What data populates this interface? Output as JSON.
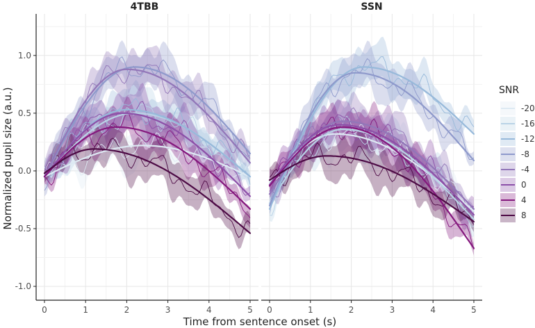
{
  "chart_data": {
    "type": "line",
    "xlabel": "Time from sentence onset (s)",
    "ylabel": "Normalized pupil size (a.u.)",
    "xlim": [
      0,
      5
    ],
    "ylim": [
      -1.12,
      1.36
    ],
    "xticks": [
      "0",
      "1",
      "2",
      "3",
      "4",
      "5"
    ],
    "yticks": [
      "1.0",
      "0.5",
      "0.0",
      "-0.5",
      "-1.0"
    ],
    "grid": true,
    "legend": {
      "title": "SNR",
      "position": "right",
      "entries": [
        "-20",
        "-16",
        "-12",
        "-8",
        "-4",
        "0",
        "4",
        "8"
      ]
    },
    "colors": {
      "-20": "#dde9f3",
      "-16": "#b9d3e6",
      "-12": "#97b9da",
      "-8": "#8e99cb",
      "-4": "#9276b8",
      "0": "#8c4fa8",
      "4": "#84177d",
      "8": "#4d0a45"
    },
    "panels": [
      {
        "title": "4TBB",
        "series": [
          {
            "name": "-20",
            "peak": 0.22,
            "peak_t": 2.4,
            "end": -0.05,
            "start": -0.05
          },
          {
            "name": "-16",
            "peak": 0.5,
            "peak_t": 2.2,
            "end": -0.05,
            "start": -0.05
          },
          {
            "name": "-12",
            "peak": 0.53,
            "peak_t": 2.0,
            "end": -0.05,
            "start": -0.05
          },
          {
            "name": "-8",
            "peak": 0.9,
            "peak_t": 2.2,
            "end": 0.15,
            "start": -0.05
          },
          {
            "name": "-4",
            "peak": 0.88,
            "peak_t": 2.0,
            "end": 0.07,
            "start": -0.05
          },
          {
            "name": "0",
            "peak": 0.5,
            "peak_t": 1.9,
            "end": -0.22,
            "start": -0.05
          },
          {
            "name": "4",
            "peak": 0.38,
            "peak_t": 1.75,
            "end": -0.33,
            "start": -0.05
          },
          {
            "name": "8",
            "peak": 0.19,
            "peak_t": 1.2,
            "end": -0.54,
            "start": -0.02
          }
        ]
      },
      {
        "title": "SSN",
        "series": [
          {
            "name": "-20",
            "peak": 0.32,
            "peak_t": 1.6,
            "end": -0.35,
            "start": -0.1
          },
          {
            "name": "-16",
            "peak": 0.36,
            "peak_t": 1.8,
            "end": -0.42,
            "start": -0.28
          },
          {
            "name": "-12",
            "peak": 0.9,
            "peak_t": 2.3,
            "end": 0.32,
            "start": -0.33
          },
          {
            "name": "-8",
            "peak": 0.85,
            "peak_t": 2.1,
            "end": 0.09,
            "start": -0.3
          },
          {
            "name": "-4",
            "peak": 0.43,
            "peak_t": 1.8,
            "end": -0.33,
            "start": -0.2
          },
          {
            "name": "0",
            "peak": 0.4,
            "peak_t": 1.7,
            "end": -0.38,
            "start": -0.12
          },
          {
            "name": "4",
            "peak": 0.38,
            "peak_t": 1.8,
            "end": -0.67,
            "start": -0.13
          },
          {
            "name": "8",
            "peak": 0.13,
            "peak_t": 1.4,
            "end": -0.44,
            "start": -0.08
          }
        ]
      }
    ]
  }
}
